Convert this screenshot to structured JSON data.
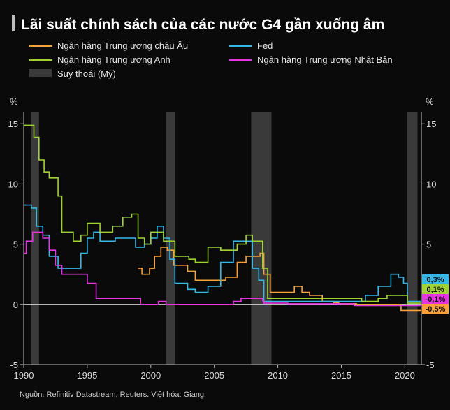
{
  "chart_data": {
    "type": "line",
    "title": "Lãi suất chính sách của các nước G4 gần xuống âm",
    "source": "Nguồn: Refinitiv Datastream, Reuters. Việt hóa: Giang.",
    "y_unit": "%",
    "xlim": [
      1990,
      2021.3
    ],
    "ylim": [
      -5,
      16
    ],
    "x_ticks": [
      1990,
      1995,
      2000,
      2005,
      2010,
      2015,
      2020
    ],
    "x_tick_labels": [
      "1990",
      "1995",
      "2000",
      "2005",
      "2010",
      "2015",
      "2020"
    ],
    "y_ticks": [
      -5,
      0,
      5,
      10,
      15
    ],
    "y_tick_labels": [
      "-5",
      "0",
      "5",
      "10",
      "15"
    ],
    "grid": false,
    "legend_position": "top",
    "recession": {
      "name": "Suy thoái (Mỹ)",
      "color": "#3a3a3a",
      "periods": [
        [
          1990.6,
          1991.2
        ],
        [
          2001.2,
          2001.9
        ],
        [
          2007.9,
          2009.5
        ],
        [
          2020.2,
          2021.0
        ]
      ]
    },
    "series": [
      {
        "name": "Ngân hàng Trung ương châu Âu",
        "color": "#f7a13a",
        "end_label": "-0,5%",
        "x": [
          1999.0,
          1999.3,
          1999.9,
          2000.3,
          2000.8,
          2001.3,
          2001.8,
          2002.9,
          2003.5,
          2005.9,
          2006.8,
          2007.5,
          2008.6,
          2008.9,
          2009.4,
          2011.3,
          2011.9,
          2012.5,
          2013.5,
          2014.4,
          2014.8,
          2016.2,
          2019.7,
          2021.3
        ],
        "y": [
          3.0,
          2.5,
          3.0,
          4.0,
          4.75,
          4.5,
          3.25,
          2.75,
          2.0,
          2.25,
          3.5,
          4.0,
          4.25,
          2.5,
          1.0,
          1.5,
          1.0,
          0.75,
          0.25,
          0.15,
          0.05,
          0.0,
          -0.5,
          -0.5
        ],
        "values_as_reserves": true
      },
      {
        "name": "Fed",
        "color": "#35b7e8",
        "end_label": "0,3%",
        "x": [
          1990.0,
          1990.6,
          1991.0,
          1991.5,
          1992.0,
          1992.7,
          1994.0,
          1994.5,
          1995.0,
          1995.5,
          1996.0,
          1997.2,
          1998.8,
          1999.5,
          2000.0,
          2000.5,
          2001.0,
          2001.5,
          2001.9,
          2002.9,
          2003.5,
          2004.5,
          2005.5,
          2006.5,
          2007.6,
          2008.0,
          2008.5,
          2008.9,
          2015.9,
          2016.9,
          2017.9,
          2018.9,
          2019.5,
          2019.9,
          2020.2,
          2021.3
        ],
        "y": [
          8.25,
          8.0,
          6.5,
          5.75,
          4.0,
          3.0,
          3.0,
          4.25,
          5.5,
          6.0,
          5.25,
          5.5,
          4.75,
          5.0,
          5.5,
          6.5,
          5.5,
          3.75,
          1.75,
          1.25,
          1.0,
          1.5,
          3.5,
          5.25,
          5.25,
          3.0,
          2.0,
          0.25,
          0.25,
          0.75,
          1.5,
          2.5,
          2.25,
          1.75,
          0.25,
          0.25
        ]
      },
      {
        "name": "Ngân hàng Trung ương Anh",
        "color": "#9fd234",
        "end_label": "0,1%",
        "x": [
          1990.0,
          1990.8,
          1991.2,
          1991.6,
          1992.0,
          1992.7,
          1993.0,
          1993.9,
          1994.5,
          1995.0,
          1996.0,
          1997.0,
          1997.8,
          1998.5,
          1999.0,
          1999.5,
          2000.0,
          2001.0,
          2001.9,
          2003.0,
          2003.5,
          2004.5,
          2005.5,
          2006.8,
          2007.5,
          2008.0,
          2008.8,
          2009.2,
          2016.6,
          2017.9,
          2018.6,
          2020.2,
          2021.3
        ],
        "y": [
          14.875,
          13.875,
          12.0,
          11.0,
          10.5,
          9.0,
          6.0,
          5.25,
          5.75,
          6.75,
          6.0,
          6.5,
          7.25,
          7.5,
          5.5,
          5.0,
          6.0,
          5.25,
          4.0,
          3.75,
          3.5,
          4.75,
          4.5,
          5.0,
          5.75,
          5.25,
          3.0,
          0.5,
          0.25,
          0.5,
          0.75,
          0.1,
          0.1
        ]
      },
      {
        "name": "Ngân hàng Trung ương Nhật Bản",
        "color": "#e535e0",
        "end_label": "-0,1%",
        "x": [
          1990.0,
          1990.2,
          1990.7,
          1991.5,
          1992.0,
          1992.5,
          1993.0,
          1995.0,
          1995.7,
          1998.8,
          1999.2,
          2000.6,
          2001.2,
          2006.5,
          2007.1,
          2008.8,
          2008.9,
          2010.8,
          2016.0,
          2021.3
        ],
        "y": [
          4.25,
          5.25,
          6.0,
          5.5,
          4.5,
          3.25,
          2.5,
          1.75,
          0.5,
          0.5,
          0.0,
          0.25,
          0.0,
          0.25,
          0.5,
          0.3,
          0.1,
          0.05,
          -0.1,
          -0.1
        ]
      }
    ]
  }
}
